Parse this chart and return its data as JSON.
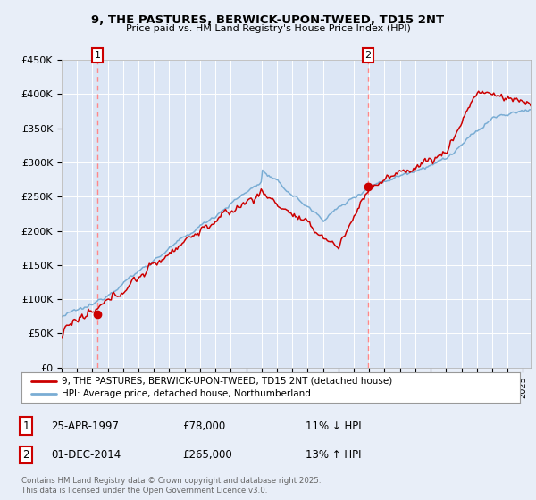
{
  "title_line1": "9, THE PASTURES, BERWICK-UPON-TWEED, TD15 2NT",
  "title_line2": "Price paid vs. HM Land Registry's House Price Index (HPI)",
  "legend_entry1": "9, THE PASTURES, BERWICK-UPON-TWEED, TD15 2NT (detached house)",
  "legend_entry2": "HPI: Average price, detached house, Northumberland",
  "annotation1_label": "1",
  "annotation1_date": "25-APR-1997",
  "annotation1_price": "£78,000",
  "annotation1_hpi": "11% ↓ HPI",
  "annotation2_label": "2",
  "annotation2_date": "01-DEC-2014",
  "annotation2_price": "£265,000",
  "annotation2_hpi": "13% ↑ HPI",
  "footer": "Contains HM Land Registry data © Crown copyright and database right 2025.\nThis data is licensed under the Open Government Licence v3.0.",
  "sale1_year": 1997.32,
  "sale1_value": 78000,
  "sale2_year": 2014.92,
  "sale2_value": 265000,
  "ylim_min": 0,
  "ylim_max": 450000,
  "xlim_min": 1995.0,
  "xlim_max": 2025.5,
  "color_red": "#cc0000",
  "color_blue": "#7aadd4",
  "color_bg": "#e8eef8",
  "color_plot_bg": "#dce6f5",
  "grid_color": "#ffffff",
  "vline_color": "#ff8888"
}
